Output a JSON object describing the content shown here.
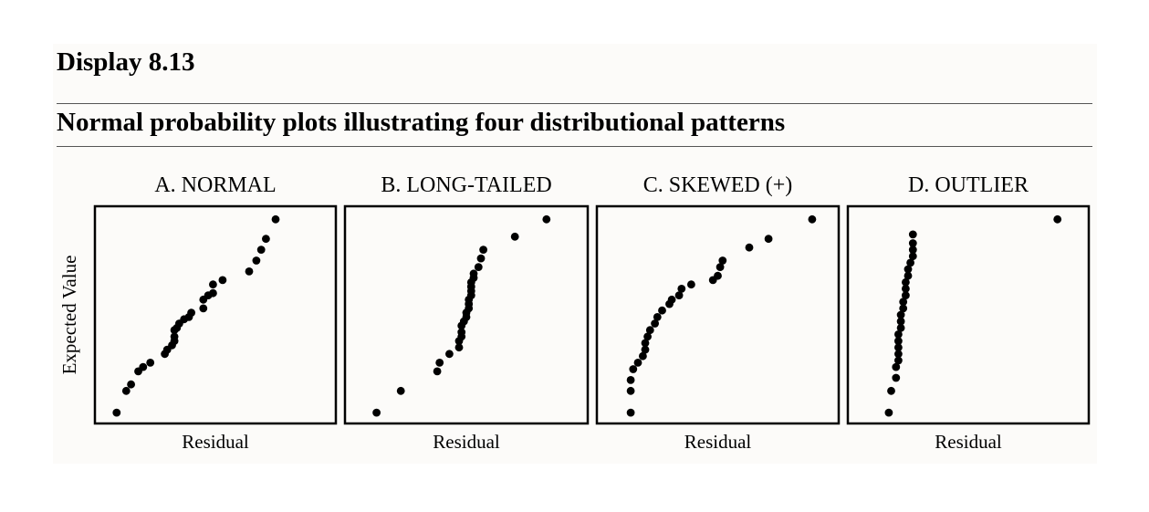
{
  "header": {
    "display_label": "Display 8.13",
    "title": "Normal probability plots illustrating four distributional patterns"
  },
  "chart_data": [
    {
      "type": "scatter",
      "title": "A. NORMAL",
      "xlabel": "Residual",
      "ylabel": "Expected Value",
      "xlim": [
        0,
        1
      ],
      "ylim": [
        0,
        1
      ],
      "points": [
        [
          0.09,
          0.05
        ],
        [
          0.13,
          0.15
        ],
        [
          0.15,
          0.18
        ],
        [
          0.18,
          0.24
        ],
        [
          0.2,
          0.26
        ],
        [
          0.23,
          0.28
        ],
        [
          0.29,
          0.32
        ],
        [
          0.3,
          0.34
        ],
        [
          0.32,
          0.36
        ],
        [
          0.33,
          0.38
        ],
        [
          0.33,
          0.4
        ],
        [
          0.33,
          0.43
        ],
        [
          0.34,
          0.44
        ],
        [
          0.35,
          0.46
        ],
        [
          0.37,
          0.48
        ],
        [
          0.39,
          0.49
        ],
        [
          0.4,
          0.51
        ],
        [
          0.45,
          0.53
        ],
        [
          0.45,
          0.57
        ],
        [
          0.47,
          0.59
        ],
        [
          0.49,
          0.6
        ],
        [
          0.49,
          0.64
        ],
        [
          0.53,
          0.66
        ],
        [
          0.64,
          0.7
        ],
        [
          0.67,
          0.75
        ],
        [
          0.69,
          0.8
        ],
        [
          0.71,
          0.85
        ],
        [
          0.75,
          0.94
        ]
      ]
    },
    {
      "type": "scatter",
      "title": "B. LONG-TAILED",
      "xlabel": "Residual",
      "ylabel": "",
      "xlim": [
        0,
        1
      ],
      "ylim": [
        0,
        1
      ],
      "points": [
        [
          0.13,
          0.05
        ],
        [
          0.23,
          0.15
        ],
        [
          0.38,
          0.24
        ],
        [
          0.39,
          0.28
        ],
        [
          0.43,
          0.32
        ],
        [
          0.47,
          0.35
        ],
        [
          0.47,
          0.38
        ],
        [
          0.48,
          0.4
        ],
        [
          0.48,
          0.42
        ],
        [
          0.48,
          0.45
        ],
        [
          0.49,
          0.47
        ],
        [
          0.5,
          0.49
        ],
        [
          0.5,
          0.51
        ],
        [
          0.51,
          0.53
        ],
        [
          0.51,
          0.55
        ],
        [
          0.51,
          0.57
        ],
        [
          0.52,
          0.59
        ],
        [
          0.52,
          0.61
        ],
        [
          0.52,
          0.63
        ],
        [
          0.52,
          0.65
        ],
        [
          0.53,
          0.67
        ],
        [
          0.53,
          0.69
        ],
        [
          0.55,
          0.72
        ],
        [
          0.56,
          0.76
        ],
        [
          0.57,
          0.8
        ],
        [
          0.7,
          0.86
        ],
        [
          0.83,
          0.94
        ]
      ]
    },
    {
      "type": "scatter",
      "title": "C. SKEWED (+)",
      "xlabel": "Residual",
      "ylabel": "",
      "xlim": [
        0,
        1
      ],
      "ylim": [
        0,
        1
      ],
      "points": [
        [
          0.14,
          0.05
        ],
        [
          0.14,
          0.15
        ],
        [
          0.14,
          0.2
        ],
        [
          0.15,
          0.25
        ],
        [
          0.17,
          0.28
        ],
        [
          0.19,
          0.31
        ],
        [
          0.2,
          0.34
        ],
        [
          0.2,
          0.37
        ],
        [
          0.21,
          0.4
        ],
        [
          0.22,
          0.43
        ],
        [
          0.24,
          0.46
        ],
        [
          0.25,
          0.49
        ],
        [
          0.27,
          0.52
        ],
        [
          0.3,
          0.55
        ],
        [
          0.31,
          0.57
        ],
        [
          0.34,
          0.59
        ],
        [
          0.35,
          0.62
        ],
        [
          0.39,
          0.64
        ],
        [
          0.48,
          0.66
        ],
        [
          0.5,
          0.68
        ],
        [
          0.51,
          0.72
        ],
        [
          0.52,
          0.75
        ],
        [
          0.63,
          0.81
        ],
        [
          0.71,
          0.85
        ],
        [
          0.89,
          0.94
        ]
      ]
    },
    {
      "type": "scatter",
      "title": "D. OUTLIER",
      "xlabel": "Residual",
      "ylabel": "",
      "xlim": [
        0,
        1
      ],
      "ylim": [
        0,
        1
      ],
      "points": [
        [
          0.17,
          0.05
        ],
        [
          0.18,
          0.15
        ],
        [
          0.2,
          0.21
        ],
        [
          0.2,
          0.26
        ],
        [
          0.21,
          0.29
        ],
        [
          0.21,
          0.32
        ],
        [
          0.21,
          0.35
        ],
        [
          0.21,
          0.38
        ],
        [
          0.21,
          0.41
        ],
        [
          0.22,
          0.44
        ],
        [
          0.22,
          0.47
        ],
        [
          0.22,
          0.5
        ],
        [
          0.23,
          0.53
        ],
        [
          0.23,
          0.56
        ],
        [
          0.24,
          0.59
        ],
        [
          0.24,
          0.62
        ],
        [
          0.24,
          0.65
        ],
        [
          0.25,
          0.68
        ],
        [
          0.25,
          0.71
        ],
        [
          0.26,
          0.74
        ],
        [
          0.27,
          0.77
        ],
        [
          0.27,
          0.8
        ],
        [
          0.27,
          0.83
        ],
        [
          0.27,
          0.87
        ],
        [
          0.87,
          0.94
        ]
      ]
    }
  ],
  "colors": {
    "marker": "#000000",
    "frame": "#000000",
    "panel_background": "#fcfbf9"
  }
}
